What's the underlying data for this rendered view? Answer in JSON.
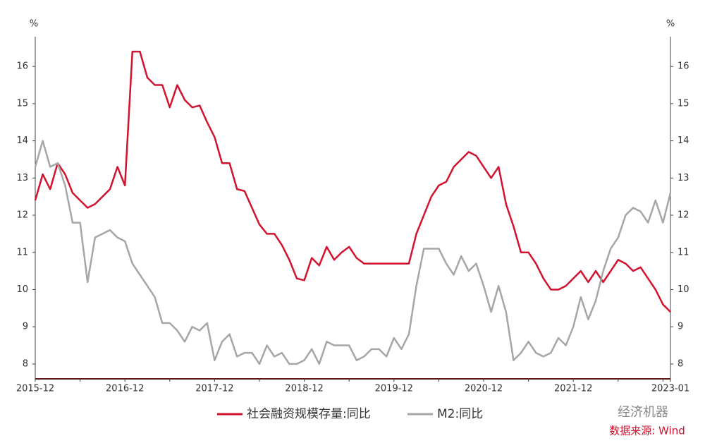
{
  "chart_data": {
    "type": "line",
    "y_unit": "%",
    "y2_unit": "%",
    "categories": [
      "2015-12",
      null,
      null,
      null,
      null,
      null,
      null,
      null,
      null,
      null,
      null,
      null,
      "2016-12",
      null,
      null,
      null,
      null,
      null,
      null,
      null,
      null,
      null,
      null,
      null,
      "2017-12",
      null,
      null,
      null,
      null,
      null,
      null,
      null,
      null,
      null,
      null,
      null,
      "2018-12",
      null,
      null,
      null,
      null,
      null,
      null,
      null,
      null,
      null,
      null,
      null,
      "2019-12",
      null,
      null,
      null,
      null,
      null,
      null,
      null,
      null,
      null,
      null,
      null,
      "2020-12",
      null,
      null,
      null,
      null,
      null,
      null,
      null,
      null,
      null,
      null,
      null,
      "2021-12",
      null,
      null,
      null,
      null,
      null,
      null,
      null,
      null,
      null,
      null,
      null,
      null,
      "2023-01"
    ],
    "series": [
      {
        "name": "社会融资规模存量:同比",
        "color": "#d2122e",
        "values": [
          12.4,
          13.1,
          12.7,
          13.4,
          13.1,
          12.6,
          12.4,
          12.2,
          12.3,
          12.5,
          12.7,
          13.3,
          12.8,
          16.4,
          16.4,
          15.7,
          15.5,
          15.5,
          14.9,
          15.5,
          15.1,
          14.9,
          14.95,
          14.5,
          14.1,
          13.4,
          13.4,
          12.7,
          12.65,
          12.2,
          11.75,
          11.5,
          11.5,
          11.2,
          10.8,
          10.3,
          10.25,
          10.85,
          10.65,
          11.15,
          10.8,
          11.0,
          11.15,
          10.85,
          10.7,
          10.7,
          10.7,
          10.7,
          10.7,
          10.7,
          10.7,
          11.5,
          12.0,
          12.5,
          12.8,
          12.9,
          13.3,
          13.5,
          13.7,
          13.6,
          13.3,
          13.0,
          13.3,
          12.3,
          11.7,
          11.0,
          11.0,
          10.7,
          10.3,
          10.0,
          10.0,
          10.1,
          10.3,
          10.5,
          10.2,
          10.5,
          10.2,
          10.5,
          10.8,
          10.7,
          10.5,
          10.6,
          10.3,
          10.0,
          9.6,
          9.4
        ]
      },
      {
        "name": "M2:同比",
        "color": "#a6a6a6",
        "values": [
          13.3,
          14.0,
          13.3,
          13.4,
          12.8,
          11.8,
          11.8,
          10.2,
          11.4,
          11.5,
          11.6,
          11.4,
          11.3,
          10.7,
          10.4,
          10.1,
          9.8,
          9.1,
          9.1,
          8.9,
          8.6,
          9.0,
          8.9,
          9.1,
          8.1,
          8.6,
          8.8,
          8.2,
          8.3,
          8.3,
          8.0,
          8.5,
          8.2,
          8.3,
          8.0,
          8.0,
          8.1,
          8.4,
          8.0,
          8.6,
          8.5,
          8.5,
          8.5,
          8.1,
          8.2,
          8.4,
          8.4,
          8.2,
          8.7,
          8.4,
          8.8,
          10.1,
          11.1,
          11.1,
          11.1,
          10.7,
          10.4,
          10.9,
          10.5,
          10.7,
          10.1,
          9.4,
          10.1,
          9.4,
          8.1,
          8.3,
          8.6,
          8.3,
          8.2,
          8.3,
          8.7,
          8.5,
          9.0,
          9.8,
          9.2,
          9.7,
          10.5,
          11.1,
          11.4,
          12.0,
          12.2,
          12.1,
          11.8,
          12.4,
          11.8,
          12.6
        ]
      }
    ],
    "ylim": [
      7.6,
      16.8
    ],
    "yticks": [
      8,
      9,
      10,
      11,
      12,
      13,
      14,
      15,
      16
    ],
    "y2lim": [
      7.6,
      16.8
    ],
    "y2ticks": [
      8,
      9,
      10,
      11,
      12,
      13,
      14,
      15,
      16
    ],
    "grid": false,
    "legend": "bottom",
    "watermark": "经济机器",
    "source": "数据来源: Wind"
  }
}
